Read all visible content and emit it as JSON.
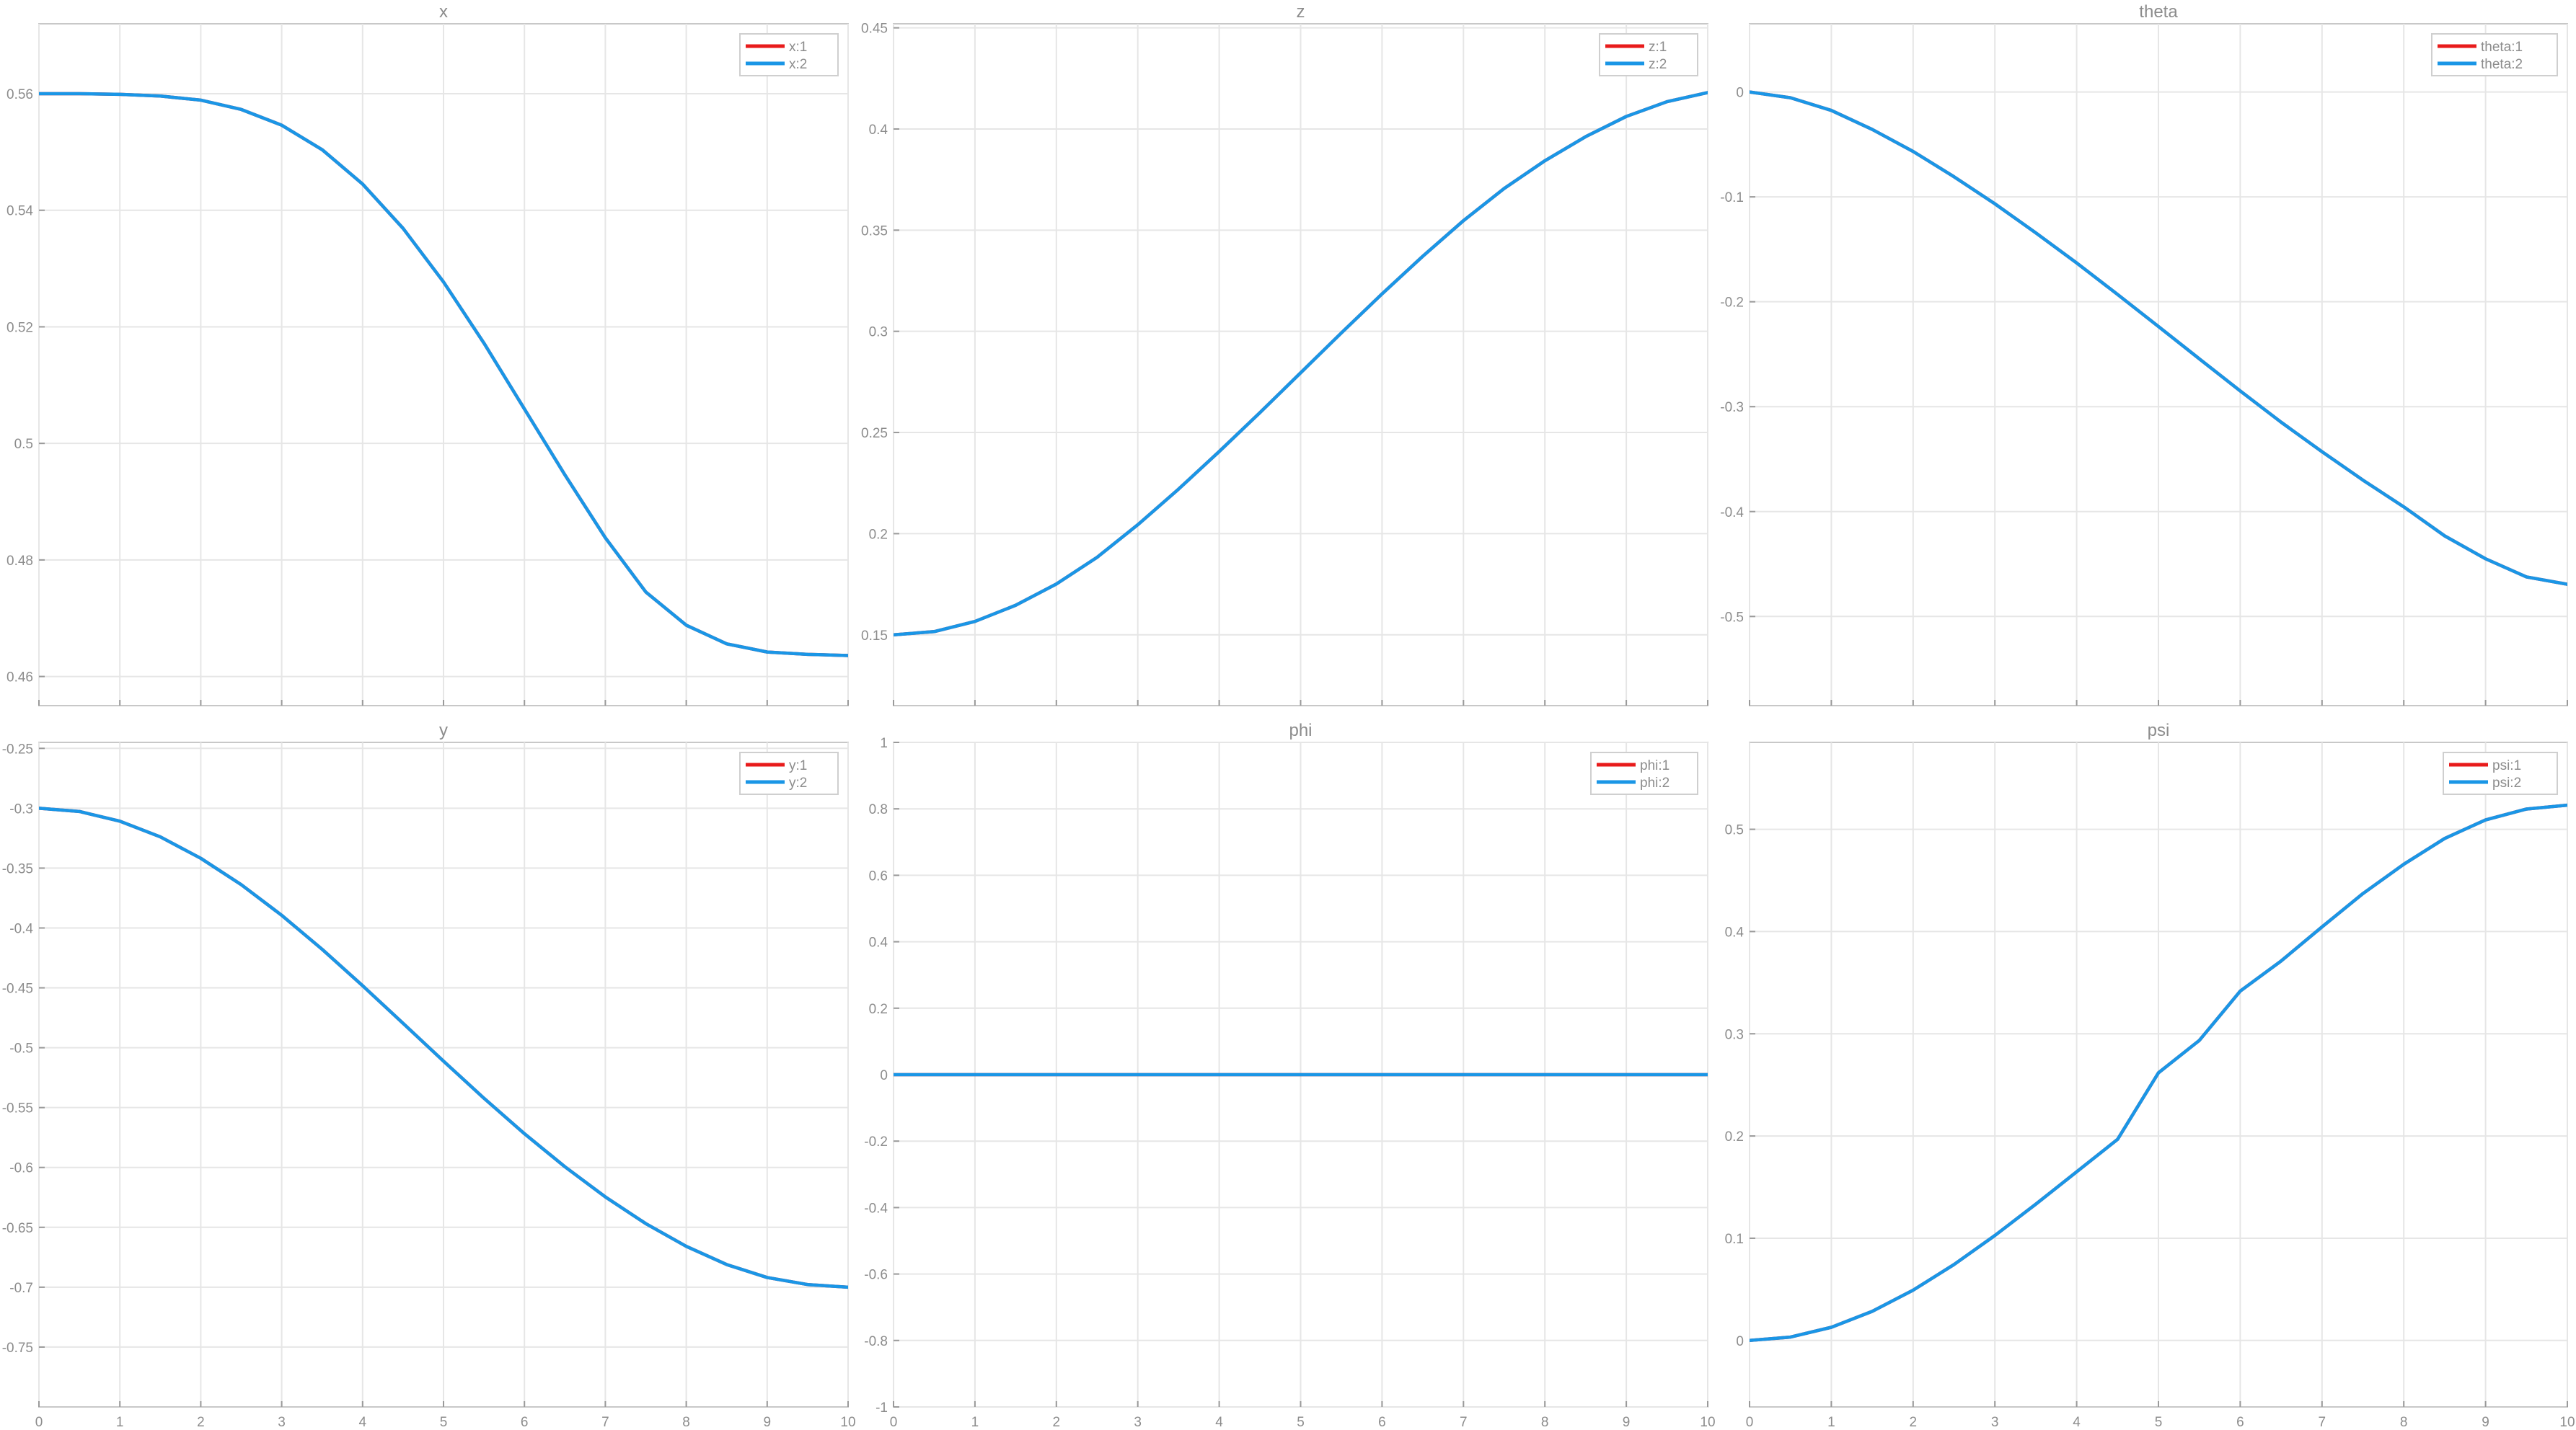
{
  "figure": {
    "colors": {
      "series1": "#e81b1b",
      "series2": "#1a96e6"
    }
  },
  "chart_data": [
    {
      "type": "line",
      "title": "x",
      "xlabel": "",
      "ylabel": "",
      "xlim": [
        0,
        10
      ],
      "ylim": [
        0.455,
        0.572
      ],
      "xticks": [
        0,
        1,
        2,
        3,
        4,
        5,
        6,
        7,
        8,
        9,
        10
      ],
      "xtick_labels": [],
      "yticks": [
        0.46,
        0.48,
        0.5,
        0.52,
        0.54,
        0.56
      ],
      "ytick_labels": [
        "0.46",
        "0.48",
        "0.5",
        "0.52",
        "0.54",
        "0.56"
      ],
      "grid": true,
      "legend": "top-right",
      "x": [
        0,
        0.5,
        1,
        1.5,
        2,
        2.5,
        3,
        3.5,
        4,
        4.5,
        5,
        5.5,
        6,
        6.5,
        7,
        7.5,
        8,
        8.5,
        9,
        9.5,
        10
      ],
      "series": [
        {
          "name": "x:1",
          "color": "#e81b1b",
          "values": [
            0.56,
            0.56,
            0.5599,
            0.5596,
            0.5589,
            0.5573,
            0.5546,
            0.5504,
            0.5445,
            0.5369,
            0.5277,
            0.5172,
            0.5059,
            0.4946,
            0.4838,
            0.4745,
            0.4688,
            0.4656,
            0.4642,
            0.4638,
            0.4636
          ]
        },
        {
          "name": "x:2",
          "color": "#1a96e6",
          "values": [
            0.56,
            0.56,
            0.5599,
            0.5596,
            0.5589,
            0.5573,
            0.5546,
            0.5504,
            0.5445,
            0.5369,
            0.5277,
            0.5172,
            0.5059,
            0.4946,
            0.4838,
            0.4745,
            0.4688,
            0.4656,
            0.4642,
            0.4638,
            0.4636
          ]
        }
      ]
    },
    {
      "type": "line",
      "title": "z",
      "xlabel": "",
      "ylabel": "",
      "xlim": [
        0,
        10
      ],
      "ylim": [
        0.115,
        0.452
      ],
      "xticks": [
        0,
        1,
        2,
        3,
        4,
        5,
        6,
        7,
        8,
        9,
        10
      ],
      "xtick_labels": [],
      "yticks": [
        0.15,
        0.2,
        0.25,
        0.3,
        0.35,
        0.4,
        0.45
      ],
      "ytick_labels": [
        "0.15",
        "0.2",
        "0.25",
        "0.3",
        "0.35",
        "0.4",
        "0.45"
      ],
      "grid": true,
      "legend": "top-right",
      "x": [
        0,
        0.5,
        1,
        1.5,
        2,
        2.5,
        3,
        3.5,
        4,
        4.5,
        5,
        5.5,
        6,
        6.5,
        7,
        7.5,
        8,
        8.5,
        9,
        9.5,
        10
      ],
      "series": [
        {
          "name": "z:1",
          "color": "#e81b1b",
          "values": [
            0.15,
            0.1516,
            0.1566,
            0.1646,
            0.1751,
            0.1883,
            0.2044,
            0.222,
            0.2406,
            0.2598,
            0.2795,
            0.2992,
            0.3185,
            0.3371,
            0.3547,
            0.3706,
            0.3843,
            0.3962,
            0.4062,
            0.4135,
            0.418
          ]
        },
        {
          "name": "z:2",
          "color": "#1a96e6",
          "values": [
            0.15,
            0.1516,
            0.1566,
            0.1646,
            0.1751,
            0.1883,
            0.2044,
            0.222,
            0.2406,
            0.2598,
            0.2795,
            0.2992,
            0.3185,
            0.3371,
            0.3547,
            0.3706,
            0.3843,
            0.3962,
            0.4062,
            0.4135,
            0.418
          ]
        }
      ]
    },
    {
      "type": "line",
      "title": "theta",
      "xlabel": "",
      "ylabel": "",
      "xlim": [
        0,
        10
      ],
      "ylim": [
        -0.585,
        0.065
      ],
      "xticks": [
        0,
        1,
        2,
        3,
        4,
        5,
        6,
        7,
        8,
        9,
        10
      ],
      "xtick_labels": [],
      "yticks": [
        -0.5,
        -0.4,
        -0.3,
        -0.2,
        -0.1,
        0
      ],
      "ytick_labels": [
        "-0.5",
        "-0.4",
        "-0.3",
        "-0.2",
        "-0.1",
        "0"
      ],
      "grid": true,
      "legend": "top-right",
      "x": [
        0,
        0.5,
        1,
        1.5,
        2,
        2.5,
        3,
        3.5,
        4,
        4.5,
        5,
        5.5,
        6,
        6.5,
        7,
        7.5,
        8,
        8.5,
        9,
        9.5,
        10
      ],
      "series": [
        {
          "name": "theta:1",
          "color": "#e81b1b",
          "values": [
            0,
            -0.0055,
            -0.0176,
            -0.0357,
            -0.0567,
            -0.0808,
            -0.1066,
            -0.1343,
            -0.163,
            -0.193,
            -0.2236,
            -0.2544,
            -0.285,
            -0.3148,
            -0.3429,
            -0.37,
            -0.3955,
            -0.4232,
            -0.445,
            -0.4623,
            -0.4693
          ]
        },
        {
          "name": "theta:2",
          "color": "#1a96e6",
          "values": [
            0,
            -0.0055,
            -0.0176,
            -0.0357,
            -0.0567,
            -0.0808,
            -0.1066,
            -0.1343,
            -0.163,
            -0.193,
            -0.2236,
            -0.2544,
            -0.285,
            -0.3148,
            -0.3429,
            -0.37,
            -0.3955,
            -0.4232,
            -0.445,
            -0.4623,
            -0.4693
          ]
        }
      ]
    },
    {
      "type": "line",
      "title": "y",
      "xlabel": "",
      "ylabel": "",
      "xlim": [
        0,
        10
      ],
      "ylim": [
        -0.8,
        -0.245
      ],
      "xticks": [
        0,
        1,
        2,
        3,
        4,
        5,
        6,
        7,
        8,
        9,
        10
      ],
      "xtick_labels": [
        "0",
        "1",
        "2",
        "3",
        "4",
        "5",
        "6",
        "7",
        "8",
        "9",
        "10"
      ],
      "yticks": [
        -0.75,
        -0.7,
        -0.65,
        -0.6,
        -0.55,
        -0.5,
        -0.45,
        -0.4,
        -0.35,
        -0.3,
        -0.25
      ],
      "ytick_labels": [
        "-0.75",
        "-0.7",
        "-0.65",
        "-0.6",
        "-0.55",
        "-0.5",
        "-0.45",
        "-0.4",
        "-0.35",
        "-0.3",
        "-0.25"
      ],
      "grid": true,
      "legend": "top-right",
      "x": [
        0,
        0.5,
        1,
        1.5,
        2,
        2.5,
        3,
        3.5,
        4,
        4.5,
        5,
        5.5,
        6,
        6.5,
        7,
        7.5,
        8,
        8.5,
        9,
        9.5,
        10
      ],
      "series": [
        {
          "name": "y:1",
          "color": "#e81b1b",
          "values": [
            -0.3,
            -0.3027,
            -0.3108,
            -0.3239,
            -0.3418,
            -0.3638,
            -0.3894,
            -0.4178,
            -0.4482,
            -0.4796,
            -0.5112,
            -0.5422,
            -0.5718,
            -0.5994,
            -0.6246,
            -0.6469,
            -0.6659,
            -0.6811,
            -0.6919,
            -0.6978,
            -0.7
          ]
        },
        {
          "name": "y:2",
          "color": "#1a96e6",
          "values": [
            -0.3,
            -0.3027,
            -0.3108,
            -0.3239,
            -0.3418,
            -0.3638,
            -0.3894,
            -0.4178,
            -0.4482,
            -0.4796,
            -0.5112,
            -0.5422,
            -0.5718,
            -0.5994,
            -0.6246,
            -0.6469,
            -0.6659,
            -0.6811,
            -0.6919,
            -0.6978,
            -0.7
          ]
        }
      ]
    },
    {
      "type": "line",
      "title": "phi",
      "xlabel": "",
      "ylabel": "",
      "xlim": [
        0,
        10
      ],
      "ylim": [
        -1,
        1
      ],
      "xticks": [
        0,
        1,
        2,
        3,
        4,
        5,
        6,
        7,
        8,
        9,
        10
      ],
      "xtick_labels": [
        "0",
        "1",
        "2",
        "3",
        "4",
        "5",
        "6",
        "7",
        "8",
        "9",
        "10"
      ],
      "yticks": [
        -1,
        -0.8,
        -0.6,
        -0.4,
        -0.2,
        0,
        0.2,
        0.4,
        0.6,
        0.8,
        1
      ],
      "ytick_labels": [
        "-1",
        "-0.8",
        "-0.6",
        "-0.4",
        "-0.2",
        "0",
        "0.2",
        "0.4",
        "0.6",
        "0.8",
        "1"
      ],
      "grid": true,
      "legend": "top-right",
      "x": [
        0,
        10
      ],
      "series": [
        {
          "name": "phi:1",
          "color": "#e81b1b",
          "values": [
            0,
            0
          ]
        },
        {
          "name": "phi:2",
          "color": "#1a96e6",
          "values": [
            0,
            0
          ]
        }
      ]
    },
    {
      "type": "line",
      "title": "psi",
      "xlabel": "",
      "ylabel": "",
      "xlim": [
        0,
        10
      ],
      "ylim": [
        -0.065,
        0.585
      ],
      "xticks": [
        0,
        1,
        2,
        3,
        4,
        5,
        6,
        7,
        8,
        9,
        10
      ],
      "xtick_labels": [
        "0",
        "1",
        "2",
        "3",
        "4",
        "5",
        "6",
        "7",
        "8",
        "9",
        "10"
      ],
      "yticks": [
        0,
        0.1,
        0.2,
        0.3,
        0.4,
        0.5
      ],
      "ytick_labels": [
        "0",
        "0.1",
        "0.2",
        "0.3",
        "0.4",
        "0.5"
      ],
      "grid": true,
      "legend": "top-right",
      "x": [
        0,
        0.5,
        1,
        1.5,
        2,
        2.5,
        3,
        3.5,
        4,
        4.5,
        5,
        5.5,
        6,
        6.5,
        7,
        7.5,
        8,
        8.5,
        9,
        9.5,
        10
      ],
      "series": [
        {
          "name": "psi:1",
          "color": "#e81b1b",
          "values": [
            0,
            0.0033,
            0.0129,
            0.0285,
            0.0492,
            0.0743,
            0.1027,
            0.1333,
            0.165,
            0.1967,
            0.2618,
            0.2935,
            0.3417,
            0.3712,
            0.4045,
            0.4371,
            0.4658,
            0.491,
            0.5092,
            0.5198,
            0.5236
          ]
        },
        {
          "name": "psi:2",
          "color": "#1a96e6",
          "values": [
            0,
            0.0033,
            0.0129,
            0.0285,
            0.0492,
            0.0743,
            0.1027,
            0.1333,
            0.165,
            0.1967,
            0.2618,
            0.2935,
            0.3417,
            0.3712,
            0.4045,
            0.4371,
            0.4658,
            0.491,
            0.5092,
            0.5198,
            0.5236
          ]
        }
      ]
    }
  ]
}
